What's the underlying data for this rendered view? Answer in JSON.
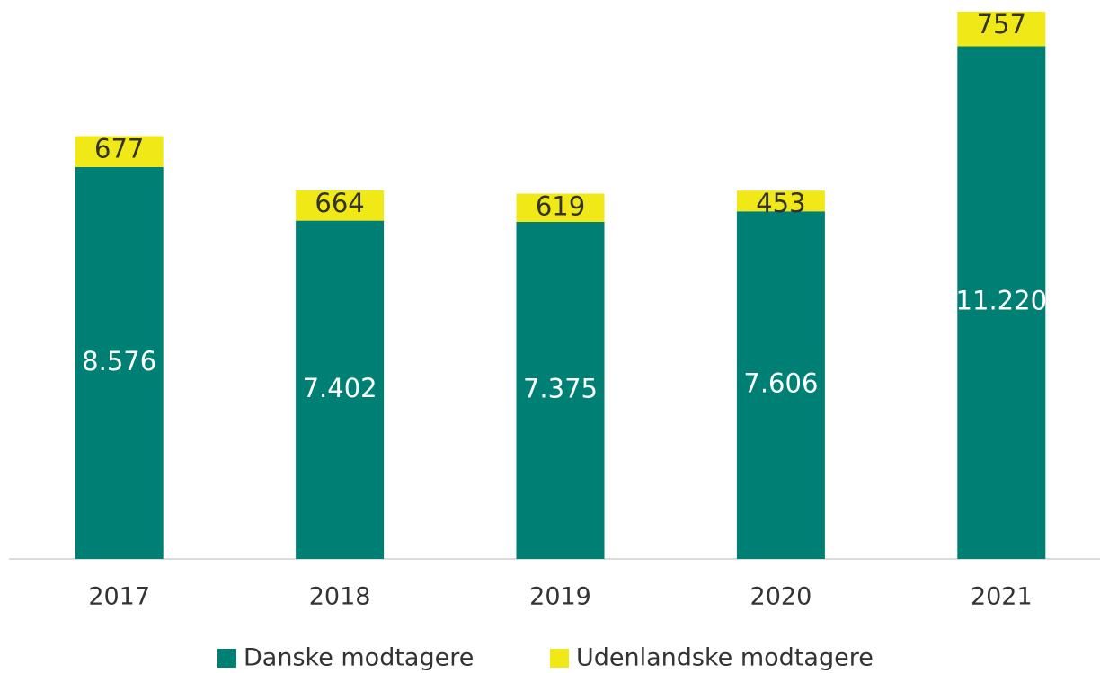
{
  "chart_data": {
    "type": "stacked_bar",
    "categories": [
      "2017",
      "2018",
      "2019",
      "2020",
      "2021"
    ],
    "series": [
      {
        "name": "Danske modtagere",
        "color": "#008075",
        "values": [
          8576,
          7402,
          7375,
          7606,
          11220
        ],
        "value_labels": [
          "8.576",
          "7.402",
          "7.375",
          "7.606",
          "11.220"
        ]
      },
      {
        "name": "Udenlandske modtagere",
        "color": "#f0e817",
        "values": [
          677,
          664,
          619,
          453,
          757
        ]
      }
    ],
    "legend": "bottom"
  }
}
